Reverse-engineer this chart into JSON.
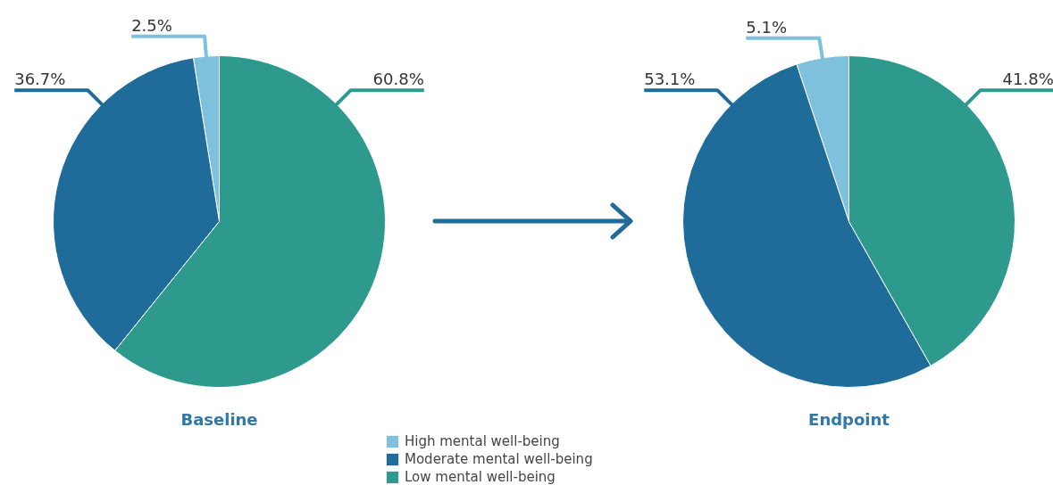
{
  "chart_data": [
    {
      "type": "pie",
      "title": "Baseline",
      "categories": [
        "High mental well-being",
        "Moderate mental well-being",
        "Low mental well-being"
      ],
      "values": [
        2.5,
        36.7,
        60.8
      ],
      "colors": [
        "#7fc0dc",
        "#1f6b9a",
        "#2e9a8e"
      ],
      "value_labels": [
        "2.5%",
        "36.7%",
        "60.8%"
      ],
      "legend": "bottom"
    },
    {
      "type": "pie",
      "title": "Endpoint",
      "categories": [
        null,
        null,
        null
      ],
      "values": [
        5.1,
        53.1,
        41.8
      ],
      "colors": [
        "#7fc0dc",
        "#1f6b9a",
        "#2e9a8e"
      ],
      "value_labels": [
        "5.1%",
        "53.1%",
        "41.8%"
      ]
    }
  ]
}
